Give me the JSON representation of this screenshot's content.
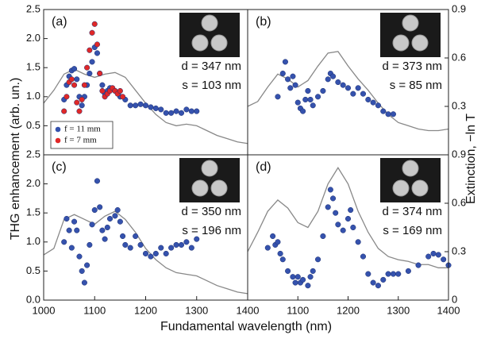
{
  "figure": {
    "xlabel": "Fundamental wavelength (nm)",
    "ylabel": "THG enhancement (arb. un.)",
    "y2label": "Extinction, −ln T"
  },
  "chart_data": [
    {
      "type": "scatter",
      "label": "(a)",
      "annotations": [
        "d = 347 nm",
        "s = 103 nm"
      ],
      "xlim": [
        1000,
        1400
      ],
      "ylim": [
        0,
        2.5
      ],
      "y2lim": [
        0,
        0.9
      ],
      "yticks": [
        0.5,
        {
          "value": 1,
          "label": "1.0"
        },
        1.5,
        {
          "value": 2,
          "label": "2.0"
        },
        2.5
      ],
      "series": [
        {
          "name": "f = 11 mm",
          "color": "#3552ad",
          "x": [
            1040,
            1045,
            1050,
            1055,
            1060,
            1065,
            1070,
            1075,
            1080,
            1085,
            1090,
            1095,
            1100,
            1105,
            1110,
            1115,
            1120,
            1125,
            1130,
            1140,
            1150,
            1160,
            1170,
            1180,
            1190,
            1200,
            1210,
            1220,
            1230,
            1240,
            1250,
            1260,
            1270,
            1280,
            1290,
            1300
          ],
          "values": [
            0.95,
            1.2,
            1.35,
            1.45,
            1.48,
            1.3,
            1.0,
            0.85,
            1.0,
            1.2,
            1.4,
            1.6,
            1.85,
            1.75,
            1.4,
            1.2,
            1.05,
            1.1,
            1.15,
            1.1,
            1.0,
            0.95,
            0.85,
            0.85,
            0.87,
            0.85,
            0.82,
            0.8,
            0.78,
            0.72,
            0.72,
            0.75,
            0.72,
            0.78,
            0.75,
            0.75
          ]
        },
        {
          "name": "f = 7 mm",
          "color": "#e02828",
          "x": [
            1040,
            1045,
            1050,
            1055,
            1060,
            1065,
            1070,
            1075,
            1080,
            1085,
            1090,
            1095,
            1100,
            1105,
            1110,
            1115,
            1120,
            1125,
            1130,
            1135,
            1140,
            1145,
            1150,
            1155
          ],
          "values": [
            0.75,
            1.0,
            1.25,
            1.3,
            1.2,
            0.9,
            0.75,
            0.95,
            1.2,
            1.5,
            1.8,
            2.1,
            2.25,
            1.9,
            1.4,
            1.1,
            1.0,
            1.05,
            1.1,
            1.15,
            1.1,
            1.05,
            1.1,
            1.0
          ]
        },
        {
          "type": "line",
          "axis": "y2",
          "color": "#888888",
          "x": [
            1000,
            1020,
            1040,
            1060,
            1080,
            1100,
            1120,
            1140,
            1160,
            1180,
            1200,
            1220,
            1240,
            1260,
            1280,
            1300,
            1320,
            1340,
            1360,
            1380,
            1400
          ],
          "values": [
            0.32,
            0.4,
            0.5,
            0.53,
            0.5,
            0.48,
            0.5,
            0.51,
            0.48,
            0.4,
            0.32,
            0.25,
            0.2,
            0.18,
            0.19,
            0.18,
            0.15,
            0.12,
            0.1,
            0.08,
            0.07
          ]
        }
      ]
    },
    {
      "type": "scatter",
      "label": "(b)",
      "annotations": [
        "d = 373 nm",
        "s = 85 nm"
      ],
      "xlim": [
        1000,
        1400
      ],
      "ylim": [
        0,
        2.5
      ],
      "y2lim": [
        0,
        0.9
      ],
      "y2ticks": [
        0.3,
        0.6,
        0.9
      ],
      "series": [
        {
          "color": "#3552ad",
          "x": [
            1060,
            1070,
            1075,
            1080,
            1085,
            1090,
            1095,
            1100,
            1105,
            1110,
            1115,
            1120,
            1125,
            1130,
            1140,
            1150,
            1160,
            1165,
            1170,
            1180,
            1190,
            1200,
            1210,
            1220,
            1230,
            1240,
            1250,
            1260,
            1270,
            1280,
            1290
          ],
          "values": [
            1.0,
            1.4,
            1.6,
            1.3,
            1.15,
            1.35,
            1.2,
            0.9,
            0.8,
            0.75,
            0.95,
            1.1,
            0.95,
            0.85,
            1.0,
            1.1,
            1.3,
            1.4,
            1.35,
            1.25,
            1.2,
            1.15,
            1.05,
            1.15,
            1.05,
            0.95,
            0.9,
            0.85,
            0.75,
            0.7,
            0.7
          ]
        },
        {
          "type": "line",
          "axis": "y2",
          "color": "#888888",
          "x": [
            1000,
            1020,
            1040,
            1060,
            1080,
            1100,
            1120,
            1140,
            1160,
            1180,
            1200,
            1220,
            1240,
            1260,
            1280,
            1300,
            1320,
            1340,
            1360,
            1380,
            1400
          ],
          "values": [
            0.3,
            0.33,
            0.42,
            0.5,
            0.47,
            0.42,
            0.46,
            0.55,
            0.63,
            0.64,
            0.55,
            0.47,
            0.4,
            0.32,
            0.25,
            0.2,
            0.18,
            0.16,
            0.15,
            0.15,
            0.16
          ]
        }
      ]
    },
    {
      "type": "scatter",
      "label": "(c)",
      "annotations": [
        "d = 350 nm",
        "s = 196 nm"
      ],
      "xlim": [
        1000,
        1400
      ],
      "ylim": [
        0,
        2.5
      ],
      "y2lim": [
        0,
        0.9
      ],
      "xticks": [
        1000,
        1100,
        1200,
        1300,
        1400
      ],
      "yticks": [
        {
          "value": 0,
          "label": "0.0"
        },
        0.5,
        {
          "value": 1,
          "label": "1.0"
        },
        1.5,
        {
          "value": 2,
          "label": "2.0"
        },
        2.5
      ],
      "series": [
        {
          "color": "#3552ad",
          "x": [
            1040,
            1045,
            1050,
            1055,
            1060,
            1065,
            1070,
            1075,
            1080,
            1085,
            1090,
            1095,
            1100,
            1105,
            1110,
            1115,
            1120,
            1125,
            1130,
            1140,
            1145,
            1150,
            1155,
            1160,
            1170,
            1180,
            1190,
            1200,
            1210,
            1220,
            1230,
            1240,
            1250,
            1260,
            1270,
            1280,
            1290,
            1300
          ],
          "values": [
            1.0,
            1.4,
            1.2,
            0.9,
            1.35,
            1.2,
            0.75,
            0.5,
            0.3,
            0.6,
            0.95,
            1.3,
            1.55,
            2.05,
            1.6,
            1.2,
            1.05,
            1.25,
            1.4,
            1.45,
            1.55,
            1.35,
            1.1,
            0.95,
            0.9,
            1.1,
            0.95,
            0.8,
            0.75,
            0.8,
            0.9,
            0.8,
            0.9,
            0.95,
            0.95,
            1.0,
            0.9,
            1.05
          ]
        },
        {
          "type": "line",
          "axis": "y2",
          "color": "#888888",
          "x": [
            1000,
            1020,
            1040,
            1060,
            1080,
            1100,
            1120,
            1140,
            1160,
            1180,
            1200,
            1220,
            1240,
            1260,
            1280,
            1300,
            1320,
            1340,
            1360,
            1380,
            1400
          ],
          "values": [
            0.28,
            0.32,
            0.5,
            0.53,
            0.5,
            0.47,
            0.52,
            0.55,
            0.5,
            0.42,
            0.32,
            0.25,
            0.2,
            0.17,
            0.16,
            0.15,
            0.12,
            0.09,
            0.07,
            0.05,
            0.04
          ]
        }
      ]
    },
    {
      "type": "scatter",
      "label": "(d)",
      "annotations": [
        "d = 374 nm",
        "s = 169 nm"
      ],
      "xlim": [
        1000,
        1400
      ],
      "ylim": [
        0,
        2.5
      ],
      "y2lim": [
        0,
        0.9
      ],
      "xticks": [
        1100,
        1200,
        1300,
        1400
      ],
      "y2ticks": [
        0,
        0.3,
        0.6,
        0.9
      ],
      "series": [
        {
          "color": "#3552ad",
          "x": [
            1040,
            1050,
            1055,
            1060,
            1065,
            1070,
            1080,
            1090,
            1095,
            1100,
            1105,
            1110,
            1120,
            1125,
            1130,
            1140,
            1150,
            1160,
            1165,
            1170,
            1175,
            1180,
            1190,
            1200,
            1205,
            1210,
            1220,
            1230,
            1240,
            1250,
            1260,
            1270,
            1280,
            1290,
            1300,
            1320,
            1340,
            1360,
            1370,
            1380,
            1390,
            1400
          ],
          "values": [
            0.9,
            1.1,
            0.95,
            1.0,
            0.8,
            0.7,
            0.5,
            0.4,
            0.3,
            0.4,
            0.3,
            0.35,
            0.25,
            0.4,
            0.5,
            0.7,
            1.1,
            1.6,
            1.9,
            1.75,
            1.5,
            1.3,
            1.2,
            1.4,
            1.55,
            1.25,
            1.0,
            0.75,
            0.45,
            0.3,
            0.25,
            0.35,
            0.45,
            0.45,
            0.45,
            0.5,
            0.6,
            0.75,
            0.8,
            0.78,
            0.7,
            0.6
          ]
        },
        {
          "type": "line",
          "axis": "y2",
          "color": "#888888",
          "x": [
            1000,
            1020,
            1040,
            1060,
            1080,
            1100,
            1120,
            1140,
            1160,
            1180,
            1200,
            1220,
            1240,
            1260,
            1280,
            1300,
            1320,
            1340,
            1360,
            1380,
            1400
          ],
          "values": [
            0.3,
            0.42,
            0.55,
            0.62,
            0.57,
            0.48,
            0.45,
            0.55,
            0.72,
            0.82,
            0.72,
            0.55,
            0.42,
            0.32,
            0.27,
            0.25,
            0.24,
            0.22,
            0.22,
            0.2,
            0.2
          ]
        }
      ]
    }
  ]
}
